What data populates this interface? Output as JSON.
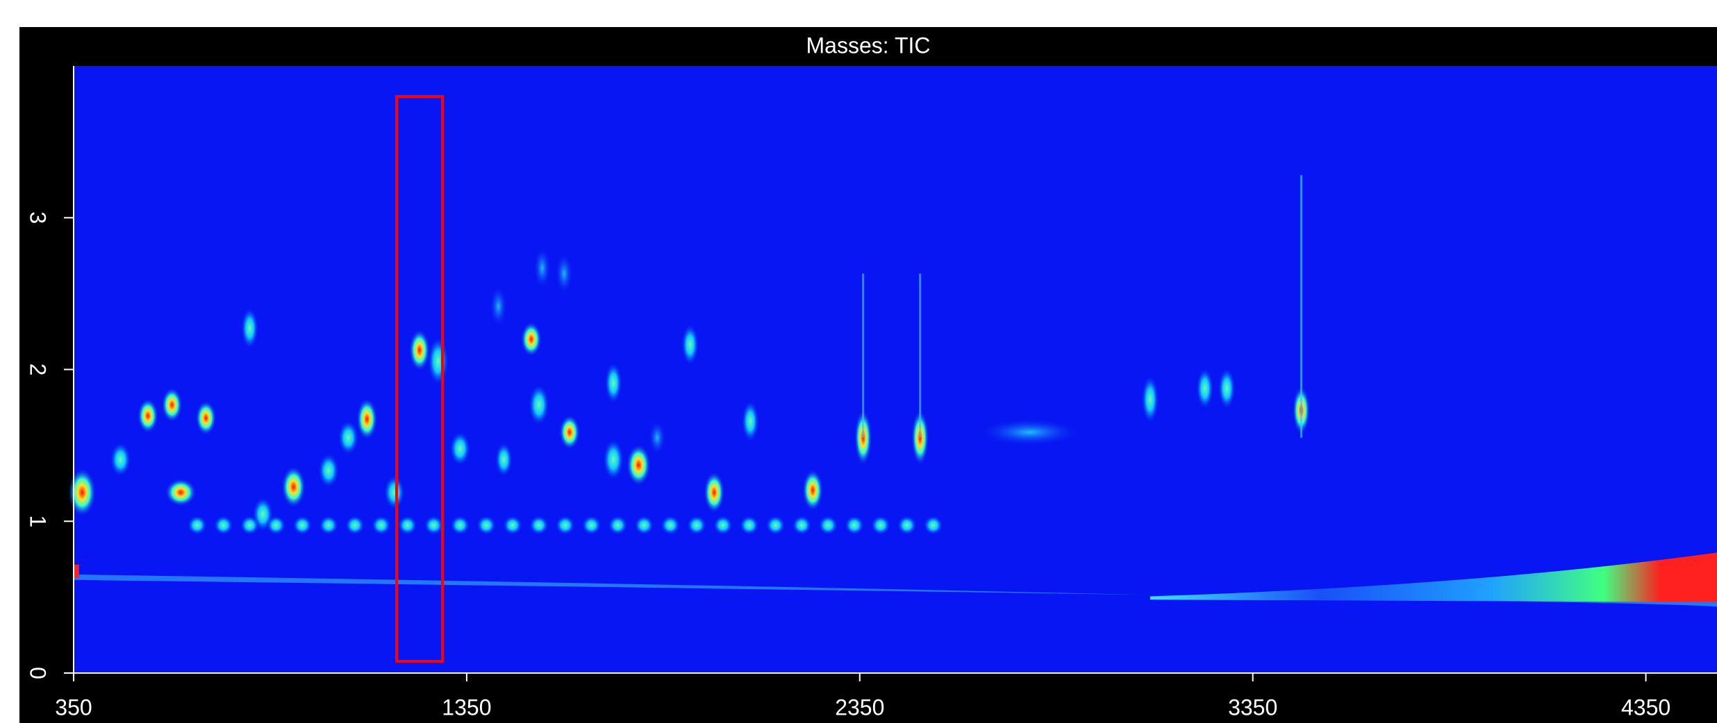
{
  "chart_data": {
    "type": "heatmap",
    "title": "Masses: TIC",
    "xlim": [
      350,
      4531
    ],
    "ylim": [
      0,
      4
    ],
    "xticks": [
      350,
      1350,
      2350,
      3350,
      4350
    ],
    "yticks": [
      0,
      1,
      2,
      3
    ]
  }
}
